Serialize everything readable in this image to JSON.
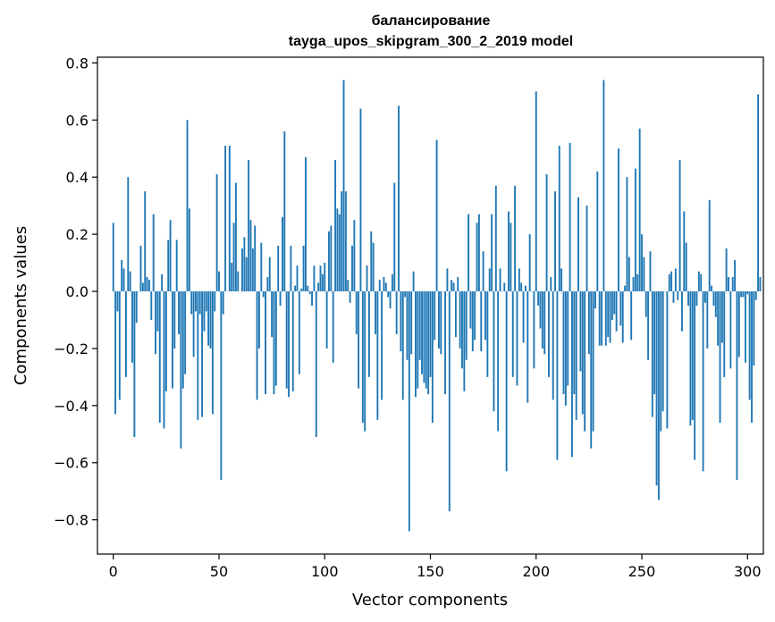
{
  "chart_data": {
    "type": "bar",
    "title_line1": "балансирование",
    "title_line2": "tayga_upos_skipgram_300_2_2019 model",
    "xlabel": "Vector components",
    "ylabel": "Components values",
    "xlim": [
      -7.5,
      307.5
    ],
    "ylim": [
      -0.92,
      0.82
    ],
    "xticks": [
      0,
      50,
      100,
      150,
      200,
      250,
      300
    ],
    "xtick_labels": [
      "0",
      "50",
      "100",
      "150",
      "200",
      "250",
      "300"
    ],
    "yticks": [
      -0.8,
      -0.6,
      -0.4,
      -0.2,
      0.0,
      0.2,
      0.4,
      0.6,
      0.8
    ],
    "ytick_labels": [
      "−0.8",
      "−0.6",
      "−0.4",
      "−0.2",
      "0.0",
      "0.2",
      "0.4",
      "0.6",
      "0.8"
    ],
    "grid": false,
    "bar_color": "#1f77b4",
    "values": [
      0.24,
      -0.43,
      -0.07,
      -0.38,
      0.11,
      0.08,
      -0.3,
      0.4,
      0.07,
      -0.25,
      -0.51,
      -0.11,
      0.0,
      0.16,
      0.03,
      0.35,
      0.05,
      0.04,
      -0.1,
      0.27,
      -0.22,
      -0.14,
      -0.46,
      0.06,
      -0.48,
      -0.35,
      0.18,
      0.25,
      -0.34,
      -0.2,
      0.18,
      -0.15,
      -0.55,
      -0.34,
      -0.29,
      0.6,
      0.29,
      -0.08,
      -0.23,
      -0.07,
      -0.45,
      -0.08,
      -0.44,
      -0.14,
      -0.07,
      -0.19,
      -0.2,
      -0.43,
      -0.07,
      0.41,
      0.07,
      -0.66,
      -0.08,
      0.51,
      0.0,
      0.51,
      0.1,
      0.24,
      0.38,
      0.07,
      0.0,
      0.15,
      0.19,
      0.12,
      0.46,
      0.25,
      0.15,
      0.23,
      -0.38,
      -0.2,
      0.17,
      -0.02,
      -0.36,
      0.05,
      0.12,
      -0.16,
      -0.36,
      -0.33,
      0.16,
      -0.05,
      0.26,
      0.56,
      -0.34,
      -0.37,
      0.16,
      -0.35,
      0.02,
      0.09,
      -0.29,
      0.01,
      0.16,
      0.47,
      0.02,
      -0.01,
      -0.05,
      0.09,
      -0.51,
      0.03,
      0.09,
      0.06,
      0.1,
      -0.2,
      0.21,
      0.23,
      -0.25,
      0.46,
      0.29,
      0.27,
      0.35,
      0.74,
      0.35,
      0.04,
      -0.04,
      0.16,
      0.25,
      -0.15,
      -0.34,
      0.64,
      -0.46,
      -0.49,
      0.09,
      -0.3,
      0.21,
      0.17,
      -0.15,
      -0.45,
      0.04,
      -0.38,
      0.05,
      0.03,
      -0.02,
      -0.06,
      0.06,
      0.38,
      -0.15,
      0.65,
      -0.21,
      -0.38,
      -0.02,
      -0.24,
      -0.84,
      -0.22,
      0.07,
      -0.37,
      -0.34,
      -0.24,
      -0.29,
      -0.32,
      -0.34,
      -0.36,
      -0.3,
      -0.46,
      -0.17,
      0.53,
      -0.2,
      -0.22,
      0.0,
      -0.36,
      0.08,
      -0.77,
      0.04,
      0.03,
      -0.16,
      0.05,
      -0.2,
      -0.27,
      -0.35,
      -0.24,
      0.27,
      -0.13,
      -0.21,
      -0.17,
      0.24,
      0.27,
      -0.21,
      0.14,
      -0.17,
      -0.3,
      0.08,
      0.27,
      -0.42,
      0.37,
      -0.49,
      0.08,
      0.0,
      0.03,
      -0.63,
      0.28,
      0.24,
      -0.3,
      0.37,
      -0.33,
      0.08,
      0.03,
      -0.18,
      0.02,
      -0.39,
      0.2,
      0.0,
      -0.27,
      0.7,
      -0.05,
      -0.13,
      -0.2,
      -0.22,
      0.41,
      -0.3,
      0.05,
      -0.38,
      0.35,
      -0.59,
      0.51,
      0.08,
      -0.36,
      -0.4,
      -0.33,
      0.52,
      -0.58,
      -0.36,
      -0.45,
      0.33,
      -0.28,
      -0.43,
      -0.49,
      0.3,
      -0.22,
      -0.55,
      -0.49,
      -0.06,
      0.42,
      -0.19,
      -0.19,
      0.74,
      -0.19,
      -0.16,
      -0.18,
      -0.1,
      -0.08,
      -0.14,
      0.5,
      -0.12,
      -0.18,
      0.02,
      0.4,
      0.12,
      -0.17,
      0.05,
      0.43,
      0.06,
      0.57,
      0.2,
      0.12,
      -0.09,
      -0.24,
      0.14,
      -0.44,
      -0.36,
      -0.68,
      -0.73,
      -0.49,
      -0.42,
      0.0,
      -0.48,
      0.06,
      0.07,
      -0.04,
      0.08,
      -0.03,
      0.46,
      -0.14,
      0.28,
      0.17,
      -0.05,
      -0.47,
      -0.45,
      -0.59,
      -0.05,
      0.07,
      0.06,
      -0.63,
      -0.04,
      -0.2,
      0.32,
      0.02,
      -0.05,
      -0.09,
      -0.19,
      -0.46,
      -0.18,
      -0.3,
      0.15,
      0.05,
      -0.27,
      0.05,
      0.11,
      -0.66,
      -0.23,
      -0.02,
      -0.02,
      -0.25,
      -0.01,
      -0.38,
      -0.46,
      -0.26,
      -0.03,
      0.69,
      0.05
    ]
  }
}
